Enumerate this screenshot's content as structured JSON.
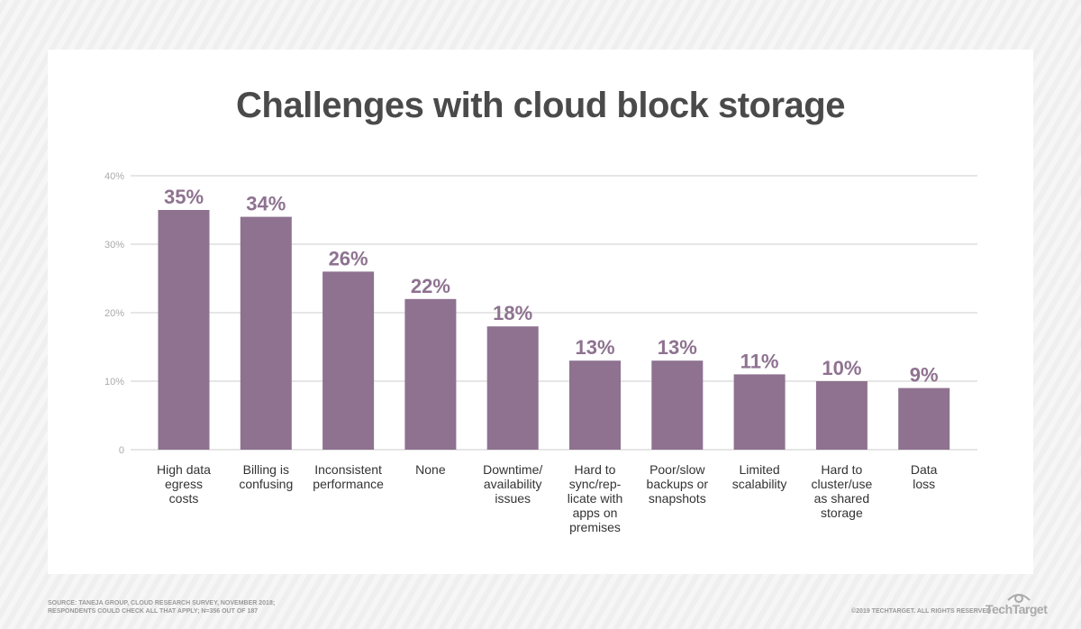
{
  "chart_data": {
    "type": "bar",
    "title": "Challenges with cloud block storage",
    "categories": [
      "High data\negress\ncosts",
      "Billing is\nconfusing",
      "Inconsistent\nperformance",
      "None",
      "Downtime/\navailability\nissues",
      "Hard to\nsync/rep-\nlicate with\napps on\npremises",
      "Poor/slow\nbackups or\nsnapshots",
      "Limited\nscalability",
      "Hard to\ncluster/use\nas shared\nstorage",
      "Data\nloss"
    ],
    "values": [
      35,
      34,
      26,
      22,
      18,
      13,
      13,
      11,
      10,
      9
    ],
    "data_labels": [
      "35%",
      "34%",
      "26%",
      "22%",
      "18%",
      "13%",
      "13%",
      "11%",
      "10%",
      "9%"
    ],
    "ylim": [
      0,
      40
    ],
    "yticks": [
      0,
      10,
      20,
      30,
      40
    ],
    "ytick_labels": [
      "0",
      "10%",
      "20%",
      "30%",
      "40%"
    ],
    "grid": true,
    "bar_color": "#8e7290",
    "label_color": "#8e7290"
  },
  "footer": {
    "source_line1": "Source: Taneja Group, Cloud Research Survey, November 2018;",
    "source_line2": "Respondents could check all that apply; N=356 out of 187",
    "copyright": "©2019 TechTarget. All rights reserved",
    "logo": "TechTarget"
  }
}
